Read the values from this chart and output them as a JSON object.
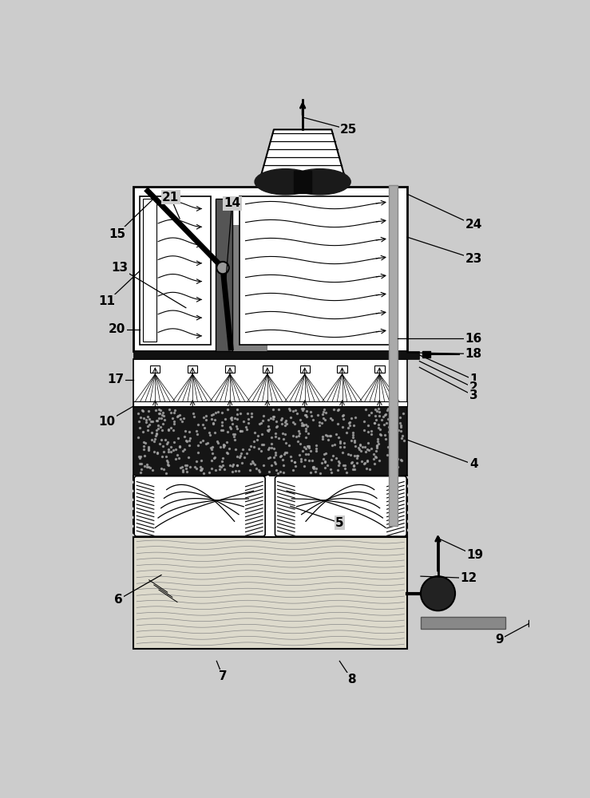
{
  "bg_color": "#cccccc",
  "white": "#ffffff",
  "black": "#000000",
  "dark_fill": "#111111",
  "med_gray": "#888888",
  "light_gray": "#aaaaaa",
  "gray_pipe": "#999999",
  "basin_fill": "#e0ddd0",
  "dark_bar_fill": "#666666"
}
